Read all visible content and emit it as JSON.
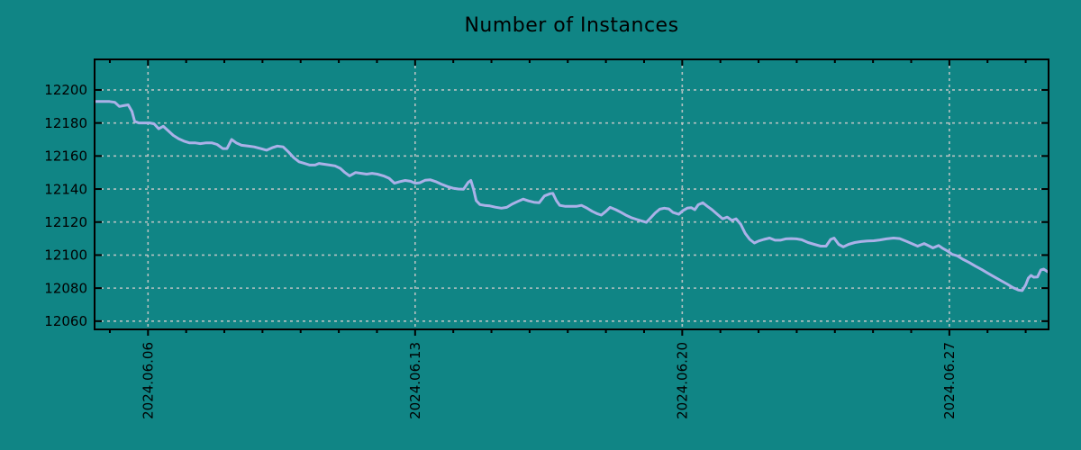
{
  "chart_data": {
    "type": "line",
    "title": "Number of Instances",
    "series_name": "instances",
    "legend": "none",
    "grid": true,
    "colors": {
      "background": "#108585",
      "line": "#abb1e8",
      "grid": "#c9c9c9",
      "axis": "#000000",
      "text": "#000000"
    },
    "x_axis": {
      "unit": "day-of-June-2024",
      "tick_days": [
        6,
        13,
        20,
        27
      ],
      "tick_labels": [
        "2024.06.06",
        "2024.06.13",
        "2024.06.20",
        "2024.06.27"
      ],
      "minor_tick_every_days": 1,
      "range_days": [
        4.6,
        29.6
      ],
      "label_rotation_deg": -90
    },
    "y_axis": {
      "tick_values": [
        12060,
        12080,
        12100,
        12120,
        12140,
        12160,
        12180,
        12200
      ],
      "range": [
        12055,
        12218.5
      ]
    },
    "points": [
      [
        4.61,
        12193
      ],
      [
        4.8,
        12193
      ],
      [
        4.99,
        12193
      ],
      [
        5.13,
        12192.5
      ],
      [
        5.25,
        12190
      ],
      [
        5.36,
        12190.5
      ],
      [
        5.48,
        12191
      ],
      [
        5.58,
        12187
      ],
      [
        5.65,
        12181
      ],
      [
        5.76,
        12180
      ],
      [
        5.91,
        12180
      ],
      [
        6.05,
        12180
      ],
      [
        6.16,
        12179.5
      ],
      [
        6.28,
        12176.5
      ],
      [
        6.4,
        12178
      ],
      [
        6.52,
        12175.5
      ],
      [
        6.66,
        12172.5
      ],
      [
        6.8,
        12170.5
      ],
      [
        6.94,
        12169
      ],
      [
        7.08,
        12168
      ],
      [
        7.23,
        12168
      ],
      [
        7.37,
        12167.5
      ],
      [
        7.53,
        12168
      ],
      [
        7.67,
        12168
      ],
      [
        7.81,
        12167
      ],
      [
        7.96,
        12164.5
      ],
      [
        8.07,
        12164.5
      ],
      [
        8.19,
        12170
      ],
      [
        8.31,
        12168
      ],
      [
        8.45,
        12166.5
      ],
      [
        8.62,
        12166
      ],
      [
        8.78,
        12165.5
      ],
      [
        8.95,
        12164.5
      ],
      [
        9.11,
        12163.5
      ],
      [
        9.25,
        12165
      ],
      [
        9.39,
        12166
      ],
      [
        9.54,
        12165.5
      ],
      [
        9.68,
        12162.5
      ],
      [
        9.82,
        12159
      ],
      [
        9.96,
        12156.5
      ],
      [
        10.1,
        12155.5
      ],
      [
        10.24,
        12154.5
      ],
      [
        10.38,
        12154.5
      ],
      [
        10.48,
        12155.5
      ],
      [
        10.62,
        12155
      ],
      [
        10.76,
        12154.5
      ],
      [
        10.9,
        12154
      ],
      [
        11.04,
        12152.5
      ],
      [
        11.16,
        12150
      ],
      [
        11.28,
        12148
      ],
      [
        11.44,
        12150
      ],
      [
        11.59,
        12149.5
      ],
      [
        11.73,
        12149
      ],
      [
        11.87,
        12149.5
      ],
      [
        12.01,
        12149
      ],
      [
        12.17,
        12148
      ],
      [
        12.32,
        12146.5
      ],
      [
        12.46,
        12143.5
      ],
      [
        12.6,
        12144.5
      ],
      [
        12.74,
        12145.2
      ],
      [
        12.88,
        12144.7
      ],
      [
        13.0,
        12143.5
      ],
      [
        13.12,
        12143.8
      ],
      [
        13.26,
        12145.3
      ],
      [
        13.4,
        12145.6
      ],
      [
        13.54,
        12144.5
      ],
      [
        13.68,
        12143
      ],
      [
        13.85,
        12141.5
      ],
      [
        13.99,
        12140.5
      ],
      [
        14.13,
        12140
      ],
      [
        14.27,
        12139.9
      ],
      [
        14.39,
        12144
      ],
      [
        14.46,
        12145.2
      ],
      [
        14.53,
        12140
      ],
      [
        14.6,
        12133
      ],
      [
        14.7,
        12130.6
      ],
      [
        14.82,
        12130.1
      ],
      [
        14.96,
        12129.8
      ],
      [
        15.1,
        12129
      ],
      [
        15.26,
        12128.4
      ],
      [
        15.4,
        12128.9
      ],
      [
        15.55,
        12131
      ],
      [
        15.69,
        12132.5
      ],
      [
        15.83,
        12133.9
      ],
      [
        15.97,
        12132.8
      ],
      [
        16.11,
        12132
      ],
      [
        16.25,
        12131.7
      ],
      [
        16.39,
        12135.8
      ],
      [
        16.54,
        12137.2
      ],
      [
        16.61,
        12137.4
      ],
      [
        16.7,
        12133
      ],
      [
        16.79,
        12130.1
      ],
      [
        16.94,
        12129.5
      ],
      [
        17.08,
        12129.5
      ],
      [
        17.22,
        12129.5
      ],
      [
        17.36,
        12130.1
      ],
      [
        17.5,
        12128.5
      ],
      [
        17.64,
        12126.5
      ],
      [
        17.78,
        12125
      ],
      [
        17.88,
        12124.2
      ],
      [
        18.0,
        12126.5
      ],
      [
        18.11,
        12128.9
      ],
      [
        18.26,
        12127.5
      ],
      [
        18.4,
        12125.8
      ],
      [
        18.54,
        12124
      ],
      [
        18.68,
        12122.5
      ],
      [
        18.82,
        12121.5
      ],
      [
        18.96,
        12120.5
      ],
      [
        19.06,
        12119.8
      ],
      [
        19.17,
        12122.5
      ],
      [
        19.29,
        12125.5
      ],
      [
        19.41,
        12127.8
      ],
      [
        19.53,
        12128.4
      ],
      [
        19.65,
        12128
      ],
      [
        19.76,
        12125.8
      ],
      [
        19.91,
        12124.7
      ],
      [
        20.02,
        12127
      ],
      [
        20.14,
        12128.5
      ],
      [
        20.24,
        12128.7
      ],
      [
        20.33,
        12127.5
      ],
      [
        20.42,
        12130.5
      ],
      [
        20.54,
        12131.7
      ],
      [
        20.66,
        12129.5
      ],
      [
        20.78,
        12127.5
      ],
      [
        20.92,
        12124.7
      ],
      [
        21.06,
        12122
      ],
      [
        21.18,
        12123
      ],
      [
        21.3,
        12121
      ],
      [
        21.41,
        12122
      ],
      [
        21.53,
        12118.7
      ],
      [
        21.65,
        12113.2
      ],
      [
        21.77,
        12109.5
      ],
      [
        21.89,
        12107.3
      ],
      [
        22.0,
        12108.5
      ],
      [
        22.14,
        12109.5
      ],
      [
        22.29,
        12110.3
      ],
      [
        22.43,
        12109
      ],
      [
        22.57,
        12109
      ],
      [
        22.71,
        12109.8
      ],
      [
        22.85,
        12110
      ],
      [
        22.99,
        12109.8
      ],
      [
        23.13,
        12109.3
      ],
      [
        23.3,
        12107.6
      ],
      [
        23.46,
        12106.5
      ],
      [
        23.63,
        12105.4
      ],
      [
        23.77,
        12105.4
      ],
      [
        23.89,
        12109.5
      ],
      [
        23.98,
        12110.3
      ],
      [
        24.1,
        12106.5
      ],
      [
        24.22,
        12105
      ],
      [
        24.36,
        12106.5
      ],
      [
        24.52,
        12107.6
      ],
      [
        24.69,
        12108.2
      ],
      [
        24.85,
        12108.5
      ],
      [
        25.02,
        12108.7
      ],
      [
        25.18,
        12109.2
      ],
      [
        25.35,
        12109.8
      ],
      [
        25.54,
        12110.3
      ],
      [
        25.7,
        12110
      ],
      [
        25.89,
        12108.2
      ],
      [
        26.06,
        12106.5
      ],
      [
        26.17,
        12105.4
      ],
      [
        26.34,
        12107
      ],
      [
        26.48,
        12105.4
      ],
      [
        26.57,
        12104.3
      ],
      [
        26.72,
        12105.8
      ],
      [
        26.83,
        12104
      ],
      [
        26.95,
        12102.5
      ],
      [
        27.07,
        12100.5
      ],
      [
        27.21,
        12099.5
      ],
      [
        27.35,
        12097.5
      ],
      [
        27.52,
        12095.5
      ],
      [
        27.68,
        12093.3
      ],
      [
        27.85,
        12091.2
      ],
      [
        28.01,
        12089
      ],
      [
        28.18,
        12086.8
      ],
      [
        28.34,
        12084.7
      ],
      [
        28.51,
        12082.5
      ],
      [
        28.67,
        12080.3
      ],
      [
        28.81,
        12078.8
      ],
      [
        28.91,
        12078.5
      ],
      [
        29.0,
        12082
      ],
      [
        29.07,
        12086
      ],
      [
        29.14,
        12087.7
      ],
      [
        29.21,
        12086.6
      ],
      [
        29.31,
        12086.8
      ],
      [
        29.4,
        12091
      ],
      [
        29.47,
        12091.5
      ],
      [
        29.57,
        12090
      ]
    ]
  }
}
